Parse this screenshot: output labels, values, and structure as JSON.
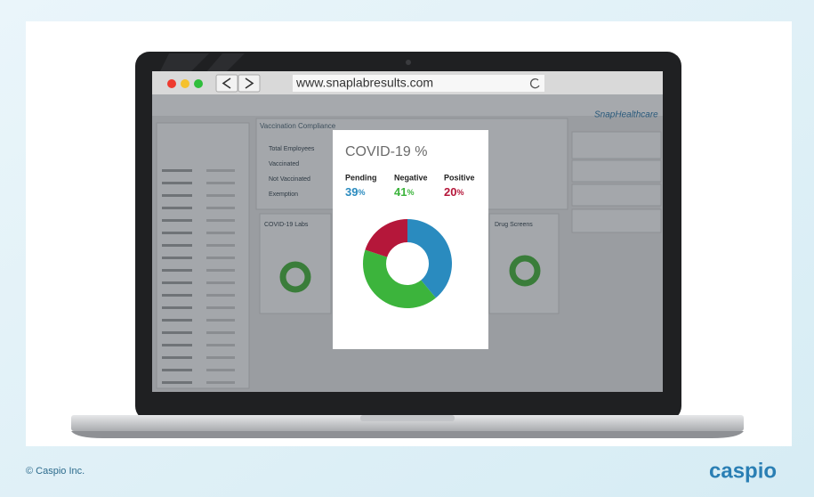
{
  "browser": {
    "url": "www.snaplabresults.com"
  },
  "dashboard": {
    "brand": "SnapHealthcare",
    "panel_title": "Vaccination Compliance",
    "rows": [
      "Total Employees",
      "Vaccinated",
      "Not Vaccinated",
      "Exemption"
    ],
    "labs_title": "COVID-19 Labs",
    "drug_title": "Drug Screens"
  },
  "chart_data": {
    "type": "pie",
    "donut": true,
    "title": "COVID-19 %",
    "categories": [
      "Pending",
      "Negative",
      "Positive"
    ],
    "values": [
      39,
      41,
      20
    ],
    "unit": "%",
    "colors": [
      "#2a8bbf",
      "#3cb43c",
      "#b5173a"
    ]
  },
  "footer": {
    "copyright": "© Caspio Inc.",
    "logo": "caspio"
  }
}
